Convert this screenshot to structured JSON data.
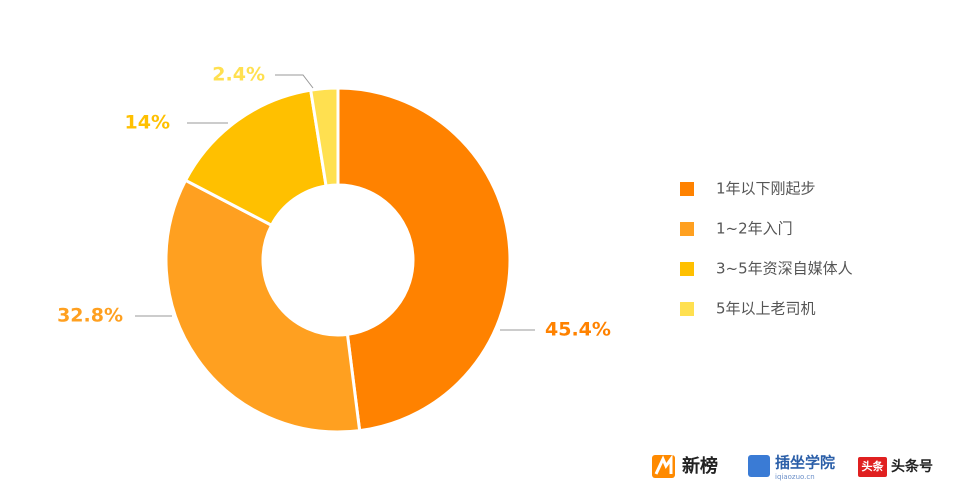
{
  "chart_data": {
    "type": "donut",
    "categories": [
      "1年以下刚起步",
      "1~2年入门",
      "3~5年资深自媒体人",
      "5年以上老司机"
    ],
    "values": [
      45.4,
      32.8,
      14,
      2.4
    ],
    "value_labels": [
      "45.4%",
      "32.8%",
      "14%",
      "2.4%"
    ],
    "colors": [
      "#ff8200",
      "#ffa020",
      "#ffc000",
      "#ffe050"
    ],
    "legend": "right"
  },
  "logos": [
    "新榜",
    "插坐学院",
    "iqiaozuo.cn",
    "头条",
    "头条号"
  ]
}
